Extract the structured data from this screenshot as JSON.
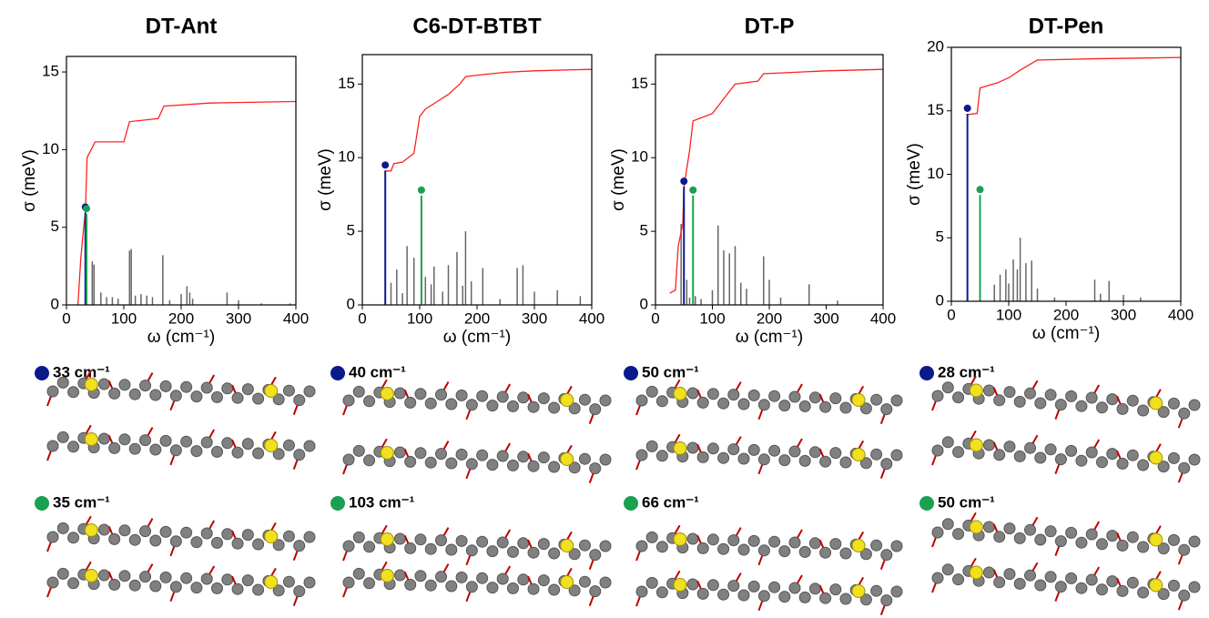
{
  "chart_data": [
    {
      "type": "spectrum",
      "title": "DT-Ant",
      "xlabel": "ω (cm⁻¹)",
      "ylabel": "σ (meV)",
      "xlim": [
        0,
        400
      ],
      "xticks": [
        0,
        100,
        200,
        300,
        400
      ],
      "ylim": [
        0,
        16
      ],
      "yticks": [
        0,
        5,
        10,
        15
      ],
      "bars": {
        "color": "#666666",
        "x": [
          45,
          48,
          60,
          70,
          80,
          90,
          110,
          113,
          120,
          130,
          140,
          150,
          168,
          180,
          200,
          210,
          215,
          220,
          280,
          300,
          340,
          390
        ],
        "values": [
          2.8,
          2.6,
          0.8,
          0.5,
          0.5,
          0.4,
          3.5,
          3.6,
          0.6,
          0.7,
          0.6,
          0.5,
          3.2,
          0.3,
          0.7,
          1.2,
          0.8,
          0.4,
          0.8,
          0.3,
          0.1,
          0.1
        ]
      },
      "line": {
        "color": "#ff2020",
        "x": [
          20,
          25,
          30,
          33,
          36,
          50,
          100,
          110,
          160,
          170,
          250,
          400
        ],
        "values": [
          0,
          3,
          5,
          6,
          9.5,
          10.5,
          10.5,
          11.8,
          12,
          12.8,
          13,
          13.1
        ]
      },
      "highlights": [
        {
          "x": 33,
          "value": 6.3,
          "color": "#0a1a8c",
          "label": "33 cm⁻¹"
        },
        {
          "x": 35,
          "value": 6.2,
          "color": "#1aa050",
          "label": "35 cm⁻¹"
        }
      ]
    },
    {
      "type": "spectrum",
      "title": "C6-DT-BTBT",
      "xlabel": "ω (cm⁻¹)",
      "ylabel": "σ (meV)",
      "xlim": [
        0,
        400
      ],
      "xticks": [
        0,
        100,
        200,
        300,
        400
      ],
      "ylim": [
        0,
        17
      ],
      "yticks": [
        0,
        5,
        10,
        15
      ],
      "bars": {
        "color": "#666666",
        "x": [
          50,
          60,
          70,
          78,
          90,
          110,
          120,
          125,
          140,
          150,
          165,
          175,
          180,
          190,
          210,
          240,
          270,
          280,
          300,
          340,
          380
        ],
        "values": [
          1.5,
          2.4,
          0.8,
          4,
          3.2,
          1.9,
          1.4,
          2.6,
          0.9,
          2.7,
          3.6,
          1.3,
          5,
          1.6,
          2.5,
          0.4,
          2.5,
          2.7,
          0.9,
          1,
          0.6
        ]
      },
      "line": {
        "color": "#ff2020",
        "x": [
          40,
          50,
          55,
          70,
          90,
          100,
          110,
          130,
          150,
          170,
          180,
          200,
          250,
          300,
          400
        ],
        "values": [
          9.1,
          9.1,
          9.6,
          9.7,
          10.3,
          12.8,
          13.3,
          13.8,
          14.3,
          15,
          15.5,
          15.6,
          15.8,
          15.9,
          16
        ]
      },
      "highlights": [
        {
          "x": 40,
          "value": 9.5,
          "color": "#0a1a8c",
          "label": "40 cm⁻¹"
        },
        {
          "x": 103,
          "value": 7.8,
          "color": "#1aa050",
          "label": "103 cm⁻¹"
        }
      ]
    },
    {
      "type": "spectrum",
      "title": "DT-P",
      "xlabel": "ω (cm⁻¹)",
      "ylabel": "σ (meV)",
      "xlim": [
        0,
        400
      ],
      "xticks": [
        0,
        100,
        200,
        300,
        400
      ],
      "ylim": [
        0,
        17
      ],
      "yticks": [
        0,
        5,
        10,
        15
      ],
      "bars": {
        "color": "#666666",
        "x": [
          45,
          55,
          60,
          70,
          80,
          100,
          110,
          120,
          130,
          140,
          150,
          160,
          190,
          200,
          220,
          270,
          320
        ],
        "values": [
          5.5,
          1.7,
          0.5,
          0.6,
          0.4,
          1,
          5.4,
          3.7,
          3.5,
          4,
          1.5,
          1.1,
          3.3,
          1.7,
          0.5,
          1.4,
          0.3
        ]
      },
      "line": {
        "color": "#ff2020",
        "x": [
          25,
          35,
          40,
          48,
          50,
          60,
          66,
          100,
          120,
          140,
          180,
          190,
          300,
          400
        ],
        "values": [
          0.8,
          1,
          4,
          5.5,
          8,
          10.5,
          12.5,
          13,
          14,
          15,
          15.2,
          15.7,
          15.9,
          16
        ]
      },
      "highlights": [
        {
          "x": 50,
          "value": 8.4,
          "color": "#0a1a8c",
          "label": "50 cm⁻¹"
        },
        {
          "x": 66,
          "value": 7.8,
          "color": "#1aa050",
          "label": "66 cm⁻¹"
        }
      ]
    },
    {
      "type": "spectrum",
      "title": "DT-Pen",
      "xlabel": "ω (cm⁻¹)",
      "ylabel": "σ (meV)",
      "xlim": [
        0,
        400
      ],
      "xticks": [
        0,
        100,
        200,
        300,
        400
      ],
      "ylim": [
        0,
        20
      ],
      "yticks": [
        0,
        5,
        10,
        15,
        20
      ],
      "bars": {
        "color": "#666666",
        "x": [
          75,
          85,
          95,
          100,
          108,
          115,
          120,
          130,
          140,
          150,
          180,
          250,
          260,
          275,
          300,
          330
        ],
        "values": [
          1.3,
          2.1,
          2.5,
          1.4,
          3.3,
          2.5,
          5,
          3,
          3.2,
          1,
          0.3,
          1.7,
          0.6,
          1.6,
          0.5,
          0.3
        ]
      },
      "line": {
        "color": "#ff2020",
        "x": [
          28,
          45,
          50,
          80,
          100,
          120,
          150,
          250,
          400
        ],
        "values": [
          14.7,
          14.8,
          16.8,
          17.2,
          17.6,
          18.2,
          19,
          19.1,
          19.2
        ]
      },
      "highlights": [
        {
          "x": 28,
          "value": 15.2,
          "color": "#0a1a8c",
          "label": "28 cm⁻¹"
        },
        {
          "x": 50,
          "value": 8.8,
          "color": "#1aa050",
          "label": "50 cm⁻¹"
        }
      ]
    }
  ]
}
